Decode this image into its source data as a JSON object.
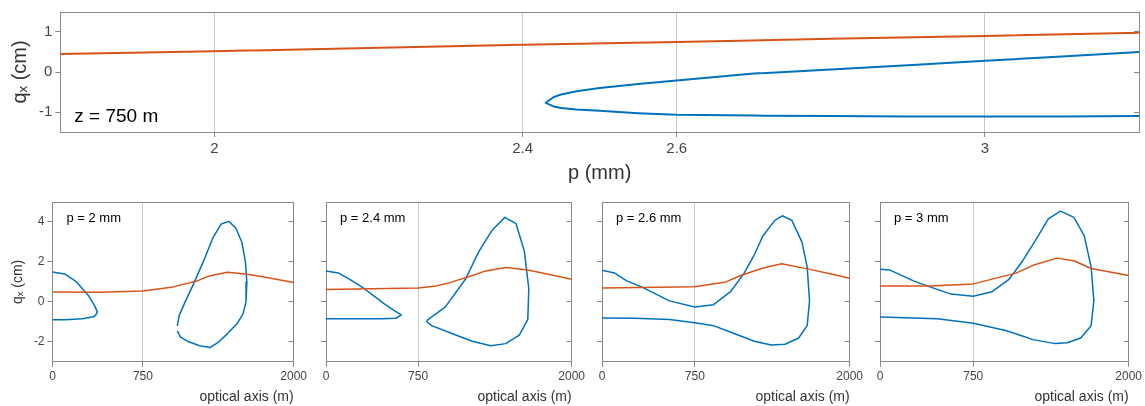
{
  "chart_data": [
    {
      "type": "line",
      "xlabel": "p (mm)",
      "ylabel": "qₓ (cm)",
      "xlim": [
        1.8,
        3.2
      ],
      "ylim": [
        -1.5,
        1.5
      ],
      "xticks": [
        2,
        2.4,
        2.6,
        3
      ],
      "yticks": [
        -1,
        0,
        1
      ],
      "grid": "x",
      "annotations": [
        "z = 750 m"
      ],
      "series": [
        {
          "color": "#d95319",
          "x": [
            1.8,
            2,
            2.2,
            2.4,
            2.6,
            2.8,
            3,
            3.2
          ],
          "values": [
            0.45,
            0.52,
            0.6,
            0.68,
            0.75,
            0.83,
            0.9,
            0.98
          ]
        },
        {
          "color": "#0072bd",
          "x": [
            3.2,
            3.1,
            3,
            2.9,
            2.8,
            2.7,
            2.6,
            2.55,
            2.5,
            2.47,
            2.45,
            2.44,
            2.43,
            2.44,
            2.45,
            2.47,
            2.5,
            2.55,
            2.6,
            2.7,
            2.8,
            2.9,
            3,
            3.1,
            3.2
          ],
          "values": [
            0.5,
            0.39,
            0.28,
            0.17,
            0.06,
            -0.04,
            -0.21,
            -0.3,
            -0.4,
            -0.48,
            -0.56,
            -0.63,
            -0.77,
            -0.86,
            -0.9,
            -0.94,
            -0.97,
            -1.03,
            -1.07,
            -1.09,
            -1.1,
            -1.11,
            -1.11,
            -1.11,
            -1.1
          ]
        }
      ]
    },
    {
      "type": "line",
      "xlabel": "optical axis (m)",
      "ylabel": "qₓ (cm)",
      "xlim": [
        0,
        2000
      ],
      "ylim": [
        -3,
        5
      ],
      "xticks": [
        0,
        750,
        2000
      ],
      "yticks": [
        -2,
        0,
        2,
        4
      ],
      "grid": "x",
      "annotations": [
        "p = 2 mm"
      ],
      "series": [
        {
          "color": "#d95319",
          "x": [
            0,
            400,
            750,
            1000,
            1200,
            1300,
            1450,
            1600,
            1800,
            2000
          ],
          "values": [
            0.5,
            0.48,
            0.55,
            0.75,
            1.05,
            1.3,
            1.48,
            1.4,
            1.2,
            0.97
          ]
        },
        {
          "color": "#0072bd",
          "x": [
            0,
            100,
            200,
            300,
            350,
            372,
            360,
            340,
            250,
            100,
            0
          ],
          "values": [
            1.5,
            1.4,
            1,
            0.3,
            -0.2,
            -0.5,
            -0.65,
            -0.75,
            -0.85,
            -0.9,
            -0.9
          ]
        },
        {
          "color": "#0072bd",
          "x": [
            1035,
            1050,
            1100,
            1170,
            1250,
            1330,
            1400,
            1463,
            1520,
            1570,
            1600,
            1612,
            1605,
            1580,
            1530,
            1450,
            1380,
            1309,
            1220,
            1130,
            1060,
            1035
          ],
          "values": [
            -1.2,
            -0.7,
            0,
            0.9,
            2,
            3.2,
            3.9,
            4.03,
            3.7,
            3,
            2,
            1,
            0,
            -0.6,
            -1.1,
            -1.6,
            -2,
            -2.28,
            -2.2,
            -2,
            -1.75,
            -1.45
          ]
        }
      ]
    },
    {
      "type": "line",
      "xlabel": "optical axis (m)",
      "xlim": [
        0,
        2000
      ],
      "ylim": [
        -3,
        5
      ],
      "xticks": [
        0,
        750,
        2000
      ],
      "yticks": [
        -2,
        0,
        2,
        4
      ],
      "grid": "x",
      "tick_labels": "x",
      "annotations": [
        "p = 2.4 mm"
      ],
      "series": [
        {
          "color": "#d95319",
          "x": [
            0,
            750,
            900,
            1000,
            1162,
            1300,
            1464,
            1643,
            1800,
            2000
          ],
          "values": [
            0.62,
            0.7,
            0.8,
            0.95,
            1.26,
            1.55,
            1.72,
            1.6,
            1.4,
            1.13
          ]
        },
        {
          "color": "#0072bd",
          "x": [
            0,
            100,
            200,
            310,
            400,
            475,
            560,
            613,
            570,
            450,
            0
          ],
          "values": [
            1.55,
            1.45,
            1.1,
            0.67,
            0.25,
            -0.1,
            -0.45,
            -0.65,
            -0.82,
            -0.85,
            -0.85
          ]
        },
        {
          "color": "#0072bd",
          "x": [
            822,
            970,
            1135,
            1245,
            1354,
            1456,
            1547,
            1615,
            1651,
            1643,
            1574,
            1464,
            1341,
            1190,
            1025,
            860,
            825,
            817
          ],
          "values": [
            -0.93,
            -0.26,
            1.13,
            2.53,
            3.6,
            4.23,
            3.92,
            2.53,
            0.67,
            -0.88,
            -1.66,
            -2.09,
            -2.2,
            -1.97,
            -1.58,
            -1.19,
            -1.02,
            -0.93
          ]
        }
      ]
    },
    {
      "type": "line",
      "xlabel": "optical axis (m)",
      "xlim": [
        0,
        2000
      ],
      "ylim": [
        -3,
        5
      ],
      "xticks": [
        0,
        750,
        2000
      ],
      "yticks": [
        -2,
        0,
        2,
        4
      ],
      "grid": "x",
      "tick_labels": "x",
      "annotations": [
        "p = 2.6 mm"
      ],
      "series": [
        {
          "color": "#d95319",
          "x": [
            0,
            750,
            1000,
            1121,
            1300,
            1451,
            1670,
            1850,
            2000
          ],
          "values": [
            0.7,
            0.76,
            1,
            1.32,
            1.7,
            1.91,
            1.64,
            1.4,
            1.18
          ]
        },
        {
          "color": "#0072bd",
          "x": [
            0,
            100,
            200,
            324,
            544,
            750,
            901,
            1038,
            1148,
            1231,
            1299,
            1396,
            1456,
            1533,
            1615,
            1657,
            1676,
            1657,
            1588,
            1478,
            1368,
            1231,
            1066,
            901,
            750,
            544,
            269,
            0
          ],
          "values": [
            1.58,
            1.45,
            1.05,
            0.74,
            0.05,
            -0.26,
            -0.14,
            0.51,
            1.44,
            2.37,
            3.3,
            4.08,
            4.31,
            4.08,
            2.99,
            1.75,
            0.05,
            -1.19,
            -1.81,
            -2.12,
            -2.16,
            -1.97,
            -1.58,
            -1.19,
            -1.04,
            -0.88,
            -0.82,
            -0.81
          ]
        }
      ]
    },
    {
      "type": "line",
      "xlabel": "optical axis (m)",
      "xlim": [
        0,
        2000
      ],
      "ylim": [
        -3,
        5
      ],
      "xticks": [
        0,
        750,
        2000
      ],
      "yticks": [
        -2,
        0,
        2,
        4
      ],
      "grid": "x",
      "tick_labels": "x",
      "annotations": [
        "p = 3 mm"
      ],
      "series": [
        {
          "color": "#d95319",
          "x": [
            0,
            400,
            750,
            1093,
            1231,
            1423,
            1560,
            1698,
            2000
          ],
          "values": [
            0.79,
            0.8,
            0.9,
            1.44,
            1.83,
            2.19,
            2.06,
            1.67,
            1.32
          ]
        },
        {
          "color": "#0072bd",
          "x": [
            0,
            77,
            269,
            407,
            571,
            750,
            901,
            1038,
            1148,
            1258,
            1354,
            1451,
            1560,
            1643,
            1698,
            1720,
            1698,
            1615,
            1505,
            1409,
            1231,
            1011,
            750,
            462,
            0
          ],
          "values": [
            1.63,
            1.6,
            1.05,
            0.74,
            0.39,
            0.28,
            0.51,
            1.13,
            2.06,
            3.15,
            4.16,
            4.54,
            4.23,
            3.3,
            1.75,
            0.05,
            -1.19,
            -1.81,
            -2.05,
            -2.09,
            -1.89,
            -1.43,
            -1.07,
            -0.85,
            -0.76
          ]
        }
      ]
    }
  ]
}
